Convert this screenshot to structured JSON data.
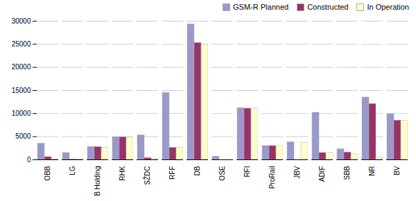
{
  "chart_data": {
    "type": "bar",
    "categories": [
      "OBB",
      "LG",
      "B Holding",
      "RHK",
      "SŽDC",
      "RFF",
      "DB",
      "OSE",
      "RFI",
      "ProRail",
      "JBV",
      "ADIF",
      "SBB",
      "NR",
      "BV"
    ],
    "series": [
      {
        "name": "GSM-R Planned",
        "color": "#9999cc",
        "values": [
          3500,
          1500,
          2800,
          4900,
          5300,
          14500,
          29300,
          700,
          11200,
          3000,
          3800,
          10200,
          2300,
          13500,
          9900
        ]
      },
      {
        "name": "Constructed",
        "color": "#993366",
        "values": [
          600,
          100,
          2750,
          4900,
          400,
          2600,
          25300,
          0,
          11100,
          3000,
          0,
          1500,
          1600,
          12100,
          8500
        ]
      },
      {
        "name": "In Operation",
        "color": "#ffffcc",
        "values": [
          100,
          100,
          2600,
          4900,
          200,
          2600,
          24900,
          0,
          11100,
          3000,
          3700,
          1500,
          1200,
          500,
          8500
        ]
      }
    ],
    "ylim": [
      0,
      30000
    ],
    "yticks": [
      0,
      5000,
      10000,
      15000,
      20000,
      25000,
      30000
    ],
    "grid": true,
    "legend": "upper right"
  }
}
